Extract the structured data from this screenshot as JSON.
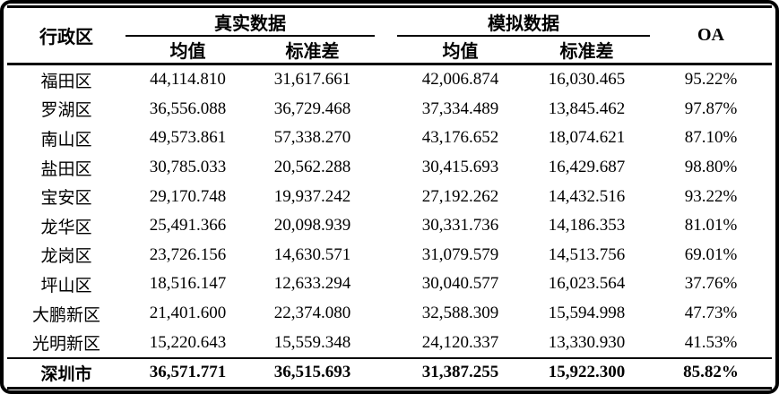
{
  "table": {
    "header": {
      "district": "行政区",
      "real_group": "真实数据",
      "sim_group": "模拟数据",
      "mean": "均值",
      "std": "标准差",
      "oa": "OA"
    },
    "rows": [
      {
        "district": "福田区",
        "real_mean": "44,114.810",
        "real_std": "31,617.661",
        "sim_mean": "42,006.874",
        "sim_std": "16,030.465",
        "oa": "95.22%"
      },
      {
        "district": "罗湖区",
        "real_mean": "36,556.088",
        "real_std": "36,729.468",
        "sim_mean": "37,334.489",
        "sim_std": "13,845.462",
        "oa": "97.87%"
      },
      {
        "district": "南山区",
        "real_mean": "49,573.861",
        "real_std": "57,338.270",
        "sim_mean": "43,176.652",
        "sim_std": "18,074.621",
        "oa": "87.10%"
      },
      {
        "district": "盐田区",
        "real_mean": "30,785.033",
        "real_std": "20,562.288",
        "sim_mean": "30,415.693",
        "sim_std": "16,429.687",
        "oa": "98.80%"
      },
      {
        "district": "宝安区",
        "real_mean": "29,170.748",
        "real_std": "19,937.242",
        "sim_mean": "27,192.262",
        "sim_std": "14,432.516",
        "oa": "93.22%"
      },
      {
        "district": "龙华区",
        "real_mean": "25,491.366",
        "real_std": "20,098.939",
        "sim_mean": "30,331.736",
        "sim_std": "14,186.353",
        "oa": "81.01%"
      },
      {
        "district": "龙岗区",
        "real_mean": "23,726.156",
        "real_std": "14,630.571",
        "sim_mean": "31,079.579",
        "sim_std": "14,513.756",
        "oa": "69.01%"
      },
      {
        "district": "坪山区",
        "real_mean": "18,516.147",
        "real_std": "12,633.294",
        "sim_mean": "30,040.577",
        "sim_std": "16,023.564",
        "oa": "37.76%"
      },
      {
        "district": "大鹏新区",
        "real_mean": "21,401.600",
        "real_std": "22,374.080",
        "sim_mean": "32,588.309",
        "sim_std": "15,594.998",
        "oa": "47.73%"
      },
      {
        "district": "光明新区",
        "real_mean": "15,220.643",
        "real_std": "15,559.348",
        "sim_mean": "24,120.337",
        "sim_std": "13,330.930",
        "oa": "41.53%"
      }
    ],
    "total_row": {
      "district": "深圳市",
      "real_mean": "36,571.771",
      "real_std": "36,515.693",
      "sim_mean": "31,387.255",
      "sim_std": "15,922.300",
      "oa": "85.82%"
    },
    "colors": {
      "text": "#000000",
      "background": "#ffffff",
      "rule": "#000000"
    }
  }
}
